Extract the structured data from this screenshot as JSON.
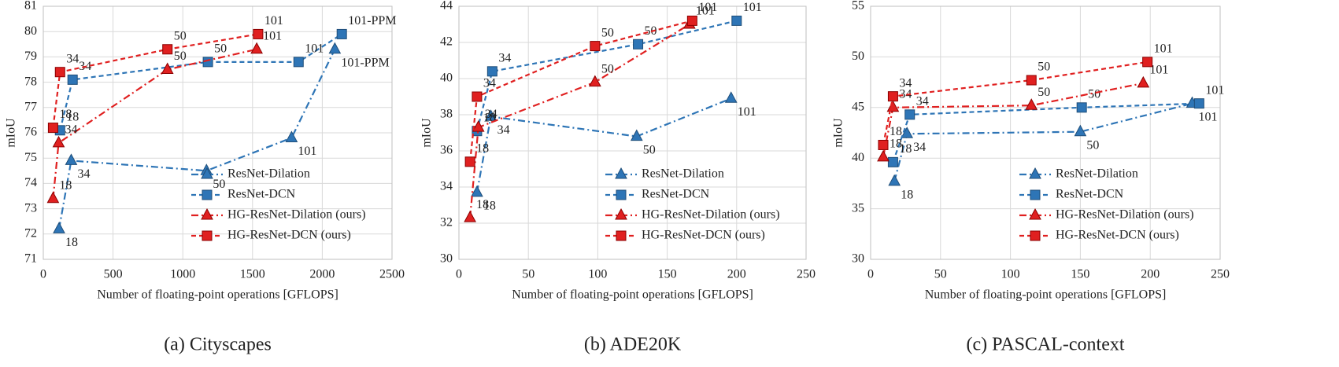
{
  "chart_data": [
    {
      "type": "line",
      "caption": "(a) Cityscapes",
      "xlabel": "Number of floating-point operations [GFLOPS]",
      "ylabel": "mIoU",
      "xlim": [
        0,
        2500
      ],
      "xticks": [
        0,
        500,
        1000,
        1500,
        2000,
        2500
      ],
      "ylim": [
        71,
        81
      ],
      "yticks": [
        71,
        72,
        73,
        74,
        75,
        76,
        77,
        78,
        79,
        80,
        81
      ],
      "grid": true,
      "legend": "lower right",
      "series": [
        {
          "name": "ResNet-Dilation",
          "color": "#2e75b6",
          "marker": "triangle",
          "line_style": "dash-dot",
          "x": [
            113,
            200,
            1170,
            1780,
            2090
          ],
          "values": [
            72.2,
            74.9,
            74.5,
            75.8,
            79.3
          ],
          "labels": [
            "18",
            "34",
            "50",
            "101",
            "101-PPM"
          ]
        },
        {
          "name": "ResNet-DCN",
          "color": "#2e75b6",
          "marker": "square",
          "line_style": "dashed",
          "x": [
            120,
            210,
            1180,
            1830,
            2140
          ],
          "values": [
            76.1,
            78.1,
            78.8,
            78.8,
            79.9
          ],
          "labels": [
            "18",
            "34",
            "50",
            "101",
            "101-PPM"
          ]
        },
        {
          "name": "HG-ResNet-Dilation (ours)",
          "color": "#e02020",
          "marker": "triangle",
          "line_style": "dash-dot",
          "x": [
            70,
            110,
            890,
            1530
          ],
          "values": [
            73.4,
            75.6,
            78.5,
            79.3
          ],
          "labels": [
            "18",
            "34",
            "50",
            "101"
          ]
        },
        {
          "name": "HG-ResNet-DCN (ours)",
          "color": "#e02020",
          "marker": "square",
          "line_style": "dashed",
          "x": [
            70,
            120,
            890,
            1540
          ],
          "values": [
            76.2,
            78.4,
            79.3,
            79.9
          ],
          "labels": [
            "18",
            "34",
            "50",
            "101"
          ]
        }
      ]
    },
    {
      "type": "line",
      "caption": "(b) ADE20K",
      "xlabel": "Number of floating-point operations [GFLOPS]",
      "ylabel": "mIoU",
      "xlim": [
        0,
        250
      ],
      "xticks": [
        0,
        50,
        100,
        150,
        200,
        250
      ],
      "ylim": [
        30,
        44
      ],
      "yticks": [
        30,
        32,
        34,
        36,
        38,
        40,
        42,
        44
      ],
      "grid": true,
      "legend": "lower right",
      "series": [
        {
          "name": "ResNet-Dilation",
          "color": "#2e75b6",
          "marker": "triangle",
          "line_style": "dash-dot",
          "x": [
            13,
            23,
            128,
            196
          ],
          "values": [
            33.7,
            37.9,
            36.8,
            38.9
          ],
          "labels": [
            "18",
            "34",
            "50",
            "101"
          ]
        },
        {
          "name": "ResNet-DCN",
          "color": "#2e75b6",
          "marker": "square",
          "line_style": "dashed",
          "x": [
            13,
            24,
            129,
            200
          ],
          "values": [
            37.1,
            40.4,
            41.9,
            43.2
          ],
          "labels": [
            "18",
            "34",
            "50",
            "101"
          ]
        },
        {
          "name": "HG-ResNet-Dilation (ours)",
          "color": "#e02020",
          "marker": "triangle",
          "line_style": "dash-dot",
          "x": [
            8,
            14,
            98,
            166
          ],
          "values": [
            32.3,
            37.3,
            39.8,
            43.0
          ],
          "labels": [
            "18",
            "34",
            "50",
            "101"
          ]
        },
        {
          "name": "HG-ResNet-DCN (ours)",
          "color": "#e02020",
          "marker": "square",
          "line_style": "dashed",
          "x": [
            8,
            13,
            98,
            168
          ],
          "values": [
            35.4,
            39.0,
            41.8,
            43.2
          ],
          "labels": [
            "18",
            "34",
            "50",
            "101"
          ]
        }
      ]
    },
    {
      "type": "line",
      "caption": "(c) PASCAL-context",
      "xlabel": "Number of floating-point operations [GFLOPS]",
      "ylabel": "mIoU",
      "xlim": [
        0,
        250
      ],
      "xticks": [
        0,
        50,
        100,
        150,
        200,
        250
      ],
      "ylim": [
        30,
        55
      ],
      "yticks": [
        30,
        35,
        40,
        45,
        50,
        55
      ],
      "grid": true,
      "legend": "lower right",
      "series": [
        {
          "name": "ResNet-Dilation",
          "color": "#2e75b6",
          "marker": "triangle",
          "line_style": "dash-dot",
          "x": [
            17,
            26,
            150,
            230
          ],
          "values": [
            37.7,
            42.4,
            42.6,
            45.4
          ],
          "labels": [
            "18",
            "34",
            "50",
            "101"
          ]
        },
        {
          "name": "ResNet-DCN",
          "color": "#2e75b6",
          "marker": "square",
          "line_style": "dashed",
          "x": [
            16,
            28,
            151,
            235
          ],
          "values": [
            39.6,
            44.3,
            45.0,
            45.4
          ],
          "labels": [
            "18",
            "34",
            "50",
            "101"
          ]
        },
        {
          "name": "HG-ResNet-Dilation (ours)",
          "color": "#e02020",
          "marker": "triangle",
          "line_style": "dash-dot",
          "x": [
            9,
            16,
            115,
            195
          ],
          "values": [
            40.1,
            45.0,
            45.2,
            47.4
          ],
          "labels": [
            "18",
            "34",
            "50",
            "101"
          ]
        },
        {
          "name": "HG-ResNet-DCN (ours)",
          "color": "#e02020",
          "marker": "square",
          "line_style": "dashed",
          "x": [
            9,
            16,
            115,
            198
          ],
          "values": [
            41.3,
            46.1,
            47.7,
            49.5
          ],
          "labels": [
            "18",
            "34",
            "50",
            "101"
          ]
        }
      ]
    }
  ]
}
